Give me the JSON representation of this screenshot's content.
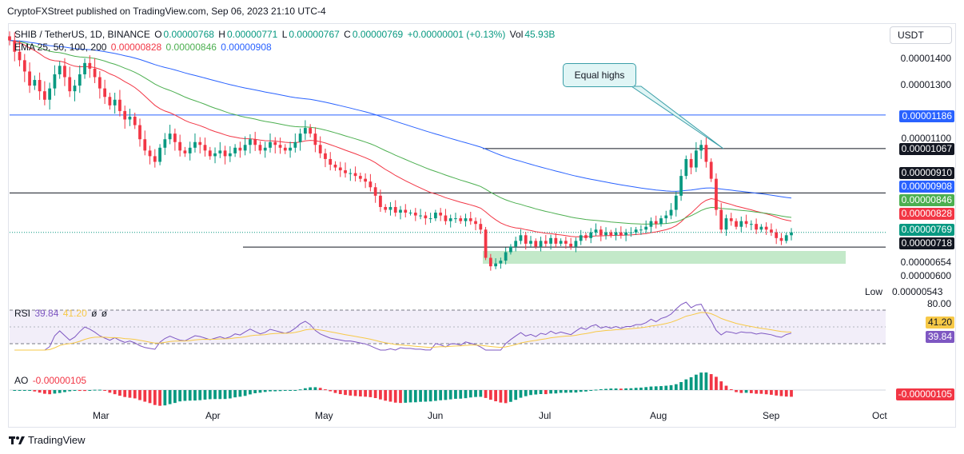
{
  "header": {
    "text": "CryptoFXStreet published on TradingView.com, Sep 06, 2023 21:10 UTC-4"
  },
  "legend": {
    "symbol": "SHIB / TetherUS, 1D, BINANCE",
    "open_label": "O",
    "open": "0.00000768",
    "high_label": "H",
    "high": "0.00000771",
    "low_label": "L",
    "low": "0.00000767",
    "close_label": "C",
    "close": "0.00000769",
    "change": "+0.00000001 (+0.13%)",
    "vol_label": "Vol",
    "vol": "45.93B",
    "ema_label": "EMA 25, 50, 100, 200",
    "ema25": "0.00000828",
    "ema50": "0.00000846",
    "ema200": "0.00000908"
  },
  "rsi_legend": {
    "label": "RSI",
    "value": "39.84",
    "ma": "41.20",
    "extra1": "ø",
    "extra2": "ø"
  },
  "ao_legend": {
    "label": "AO",
    "value": "-0.00000105"
  },
  "currency_button": "USDT",
  "annotation": {
    "label": "Equal highs"
  },
  "price_axis": {
    "ticks": [
      "0.00001400",
      "0.00001300",
      "0.00001100",
      "0.00000654",
      "0.00000600"
    ],
    "labels": {
      "level_top": "0.00001186",
      "level_equal_highs": "0.00001067",
      "level_910": "0.00000910",
      "ema200": "0.00000908",
      "ema50": "0.00000846",
      "ema25": "0.00000828",
      "last": "0.00000769",
      "support": "0.00000718"
    },
    "low_text": "Low",
    "low_value": "0.00000543"
  },
  "rsi_axis": {
    "top": "80.00",
    "ma": "41.20",
    "value": "39.84"
  },
  "ao_axis": {
    "value": "-0.00000105"
  },
  "months": [
    "Mar",
    "Apr",
    "May",
    "Jun",
    "Jul",
    "Aug",
    "Sep",
    "Oct"
  ],
  "footer": {
    "brand": "TradingView"
  },
  "colors": {
    "up": "#089981",
    "down": "#f23645",
    "ema25": "#f23645",
    "ema50": "#4caf50",
    "ema200": "#2962ff",
    "rsi": "#7e57c2",
    "rsi_ma": "#f7c948",
    "zone": "#b8e5c0",
    "hline": "#131722"
  },
  "chart_data": {
    "type": "candlestick",
    "title": "SHIB / TetherUS, 1D, BINANCE",
    "close_series": [
      1.45e-05,
      1.41e-05,
      1.38e-05,
      1.34e-05,
      1.29e-05,
      1.31e-05,
      1.27e-05,
      1.24e-05,
      1.28e-05,
      1.33e-05,
      1.36e-05,
      1.32e-05,
      1.27e-05,
      1.29e-05,
      1.33e-05,
      1.37e-05,
      1.35e-05,
      1.32e-05,
      1.28e-05,
      1.25e-05,
      1.22e-05,
      1.24e-05,
      1.2e-05,
      1.17e-05,
      1.18e-05,
      1.15e-05,
      1.1e-05,
      1.06e-05,
      1.04e-05,
      1.02e-05,
      1.07e-05,
      1.1e-05,
      1.12e-05,
      1.09e-05,
      1.06e-05,
      1.05e-05,
      1.07e-05,
      1.09e-05,
      1.08e-05,
      1.06e-05,
      1.04e-05,
      1.05e-05,
      1.06e-05,
      1.04e-05,
      1.05e-05,
      1.07e-05,
      1.06e-05,
      1.08e-05,
      1.1e-05,
      1.08e-05,
      1.06e-05,
      1.07e-05,
      1.09e-05,
      1.08e-05,
      1.07e-05,
      1.06e-05,
      1.07e-05,
      1.09e-05,
      1.12e-05,
      1.14e-05,
      1.12e-05,
      1.08e-05,
      1.05e-05,
      1.03e-05,
      1.01e-05,
      1e-05,
      9.9e-06,
      9.8e-06,
      9.8e-06,
      9.7e-06,
      9.6e-06,
      9.5e-06,
      9.3e-06,
      9e-06,
      8.6e-06,
      8.5e-06,
      8.6e-06,
      8.4e-06,
      8.5e-06,
      8.4e-06,
      8.4e-06,
      8.3e-06,
      8.3e-06,
      8.2e-06,
      8.2e-06,
      8.4e-06,
      8.3e-06,
      8.1e-06,
      8.2e-06,
      8.2e-06,
      8.1e-06,
      8.2e-06,
      8.1e-06,
      8e-06,
      7.8e-06,
      6.8e-06,
      6.5e-06,
      6.6e-06,
      6.7e-06,
      7e-06,
      7.2e-06,
      7.4e-06,
      7.6e-06,
      7.3e-06,
      7.4e-06,
      7.2e-06,
      7.4e-06,
      7.3e-06,
      7.5e-06,
      7.3e-06,
      7.4e-06,
      7.3e-06,
      7.2e-06,
      7.4e-06,
      7.6e-06,
      7.5e-06,
      7.7e-06,
      7.8e-06,
      7.6e-06,
      7.7e-06,
      7.6e-06,
      7.7e-06,
      7.6e-06,
      7.7e-06,
      7.7e-06,
      7.8e-06,
      7.8e-06,
      7.9e-06,
      8.1e-06,
      8e-06,
      8.2e-06,
      8.3e-06,
      8.5e-06,
      9e-06,
      9.7e-06,
      1.03e-05,
      1e-05,
      1.06e-05,
      1.08e-05,
      1.02e-05,
      9.6e-06,
      8.5e-06,
      7.8e-06,
      8.2e-06,
      8.1e-06,
      7.9e-06,
      8.1e-06,
      8e-06,
      8e-06,
      7.8e-06,
      7.9e-06,
      7.8e-06,
      7.7e-06,
      7.5e-06,
      7.4e-06,
      7.6e-06,
      7.7e-06
    ],
    "horizontal_levels": [
      1.186e-05,
      1.067e-05,
      9.1e-06,
      7.18e-06
    ],
    "y_range": [
      5.4e-06,
      1.48e-05
    ],
    "x_labels": [
      "Mar",
      "Apr",
      "May",
      "Jun",
      "Jul",
      "Aug",
      "Sep",
      "Oct"
    ],
    "annotation": "Equal highs",
    "rsi": {
      "value": 39.84,
      "ma": 41.2,
      "upper_band": 70,
      "lower_band": 30
    },
    "ao": {
      "value": -1.05e-06
    }
  }
}
